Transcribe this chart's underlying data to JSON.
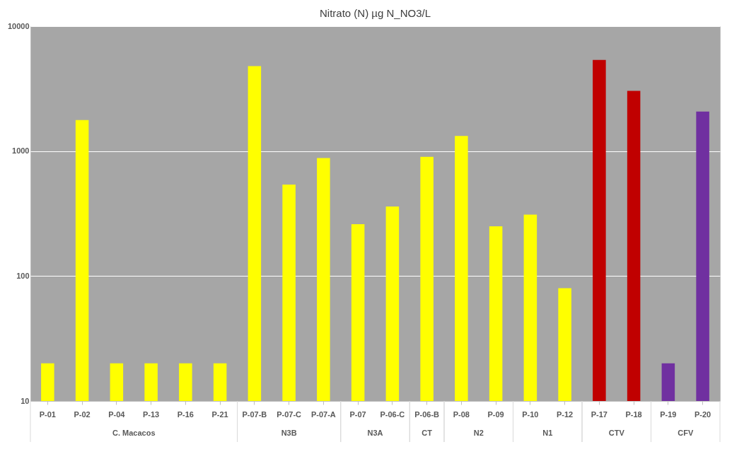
{
  "chart_data": {
    "type": "bar",
    "title": "Nitrato (N) µg N_NO3/L",
    "categories": [
      "P-01",
      "P-02",
      "P-04",
      "P-13",
      "P-16",
      "P-21",
      "P-07-B",
      "P-07-C",
      "P-07-A",
      "P-07",
      "P-06-C",
      "P-06-B",
      "P-08",
      "P-09",
      "P-10",
      "P-12",
      "P-17",
      "P-18",
      "P-19",
      "P-20"
    ],
    "values": [
      20,
      1770,
      20,
      20,
      20,
      20,
      4790,
      540,
      880,
      260,
      360,
      900,
      1320,
      250,
      310,
      80,
      5360,
      3030,
      20,
      2070
    ],
    "colors": [
      "#ffff00",
      "#ffff00",
      "#ffff00",
      "#ffff00",
      "#ffff00",
      "#ffff00",
      "#ffff00",
      "#ffff00",
      "#ffff00",
      "#ffff00",
      "#ffff00",
      "#ffff00",
      "#ffff00",
      "#ffff00",
      "#ffff00",
      "#ffff00",
      "#c00000",
      "#c00000",
      "#7030a0",
      "#7030a0"
    ],
    "annotations": [
      "C. Macacos",
      "N3B",
      "N3A",
      "CT",
      "N2",
      "N1",
      "CTV",
      "CFV"
    ],
    "log": true,
    "ylim": [
      10,
      10000
    ],
    "yticks": [
      10,
      100,
      1000,
      10000
    ],
    "grid": "y"
  }
}
